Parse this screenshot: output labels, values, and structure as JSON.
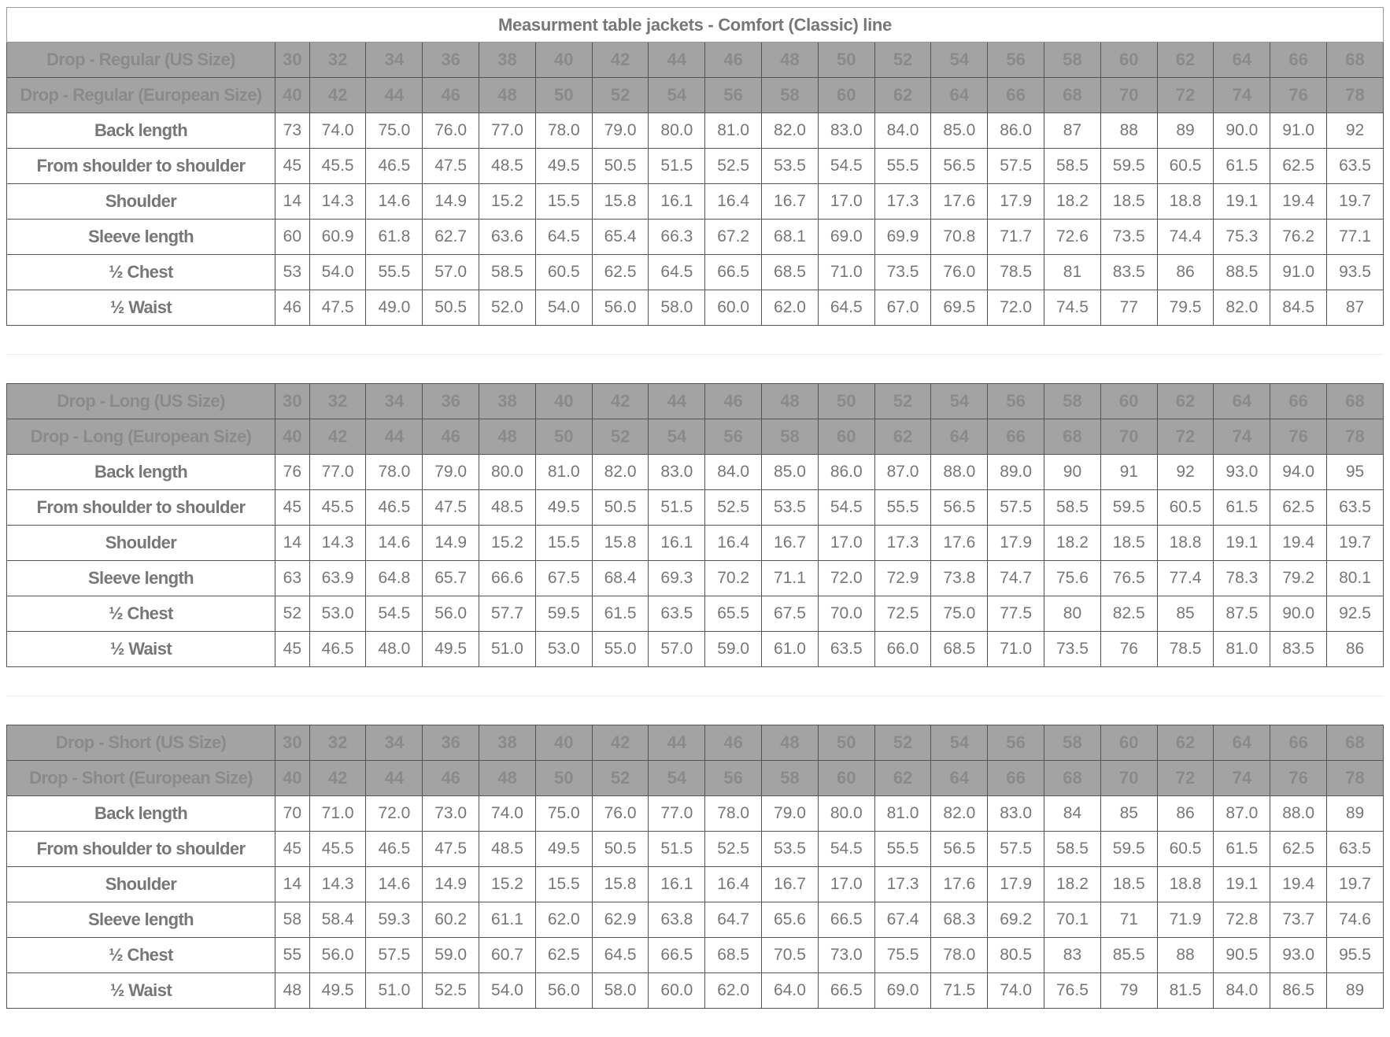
{
  "title": "Measurment table jackets - Comfort (Classic) line",
  "colors": {
    "header_bg": "#a3a3a3",
    "header_text": "#8a8a8a",
    "body_text": "#777777"
  },
  "sections": [
    {
      "us_label": "Drop - Regular (US Size)",
      "eu_label": "Drop - Regular (European Size)",
      "us_sizes": [
        "30",
        "32",
        "34",
        "36",
        "38",
        "40",
        "42",
        "44",
        "46",
        "48",
        "50",
        "52",
        "54",
        "56",
        "58",
        "60",
        "62",
        "64",
        "66",
        "68"
      ],
      "eu_sizes": [
        "40",
        "42",
        "44",
        "46",
        "48",
        "50",
        "52",
        "54",
        "56",
        "58",
        "60",
        "62",
        "64",
        "66",
        "68",
        "70",
        "72",
        "74",
        "76",
        "78"
      ],
      "rows": [
        {
          "label": "Back length",
          "values": [
            "73",
            "74.0",
            "75.0",
            "76.0",
            "77.0",
            "78.0",
            "79.0",
            "80.0",
            "81.0",
            "82.0",
            "83.0",
            "84.0",
            "85.0",
            "86.0",
            "87",
            "88",
            "89",
            "90.0",
            "91.0",
            "92"
          ]
        },
        {
          "label": "From shoulder to shoulder",
          "values": [
            "45",
            "45.5",
            "46.5",
            "47.5",
            "48.5",
            "49.5",
            "50.5",
            "51.5",
            "52.5",
            "53.5",
            "54.5",
            "55.5",
            "56.5",
            "57.5",
            "58.5",
            "59.5",
            "60.5",
            "61.5",
            "62.5",
            "63.5"
          ]
        },
        {
          "label": "Shoulder",
          "values": [
            "14",
            "14.3",
            "14.6",
            "14.9",
            "15.2",
            "15.5",
            "15.8",
            "16.1",
            "16.4",
            "16.7",
            "17.0",
            "17.3",
            "17.6",
            "17.9",
            "18.2",
            "18.5",
            "18.8",
            "19.1",
            "19.4",
            "19.7"
          ]
        },
        {
          "label": "Sleeve length",
          "values": [
            "60",
            "60.9",
            "61.8",
            "62.7",
            "63.6",
            "64.5",
            "65.4",
            "66.3",
            "67.2",
            "68.1",
            "69.0",
            "69.9",
            "70.8",
            "71.7",
            "72.6",
            "73.5",
            "74.4",
            "75.3",
            "76.2",
            "77.1"
          ]
        },
        {
          "label": "½ Chest",
          "values": [
            "53",
            "54.0",
            "55.5",
            "57.0",
            "58.5",
            "60.5",
            "62.5",
            "64.5",
            "66.5",
            "68.5",
            "71.0",
            "73.5",
            "76.0",
            "78.5",
            "81",
            "83.5",
            "86",
            "88.5",
            "91.0",
            "93.5"
          ]
        },
        {
          "label": "½ Waist",
          "values": [
            "46",
            "47.5",
            "49.0",
            "50.5",
            "52.0",
            "54.0",
            "56.0",
            "58.0",
            "60.0",
            "62.0",
            "64.5",
            "67.0",
            "69.5",
            "72.0",
            "74.5",
            "77",
            "79.5",
            "82.0",
            "84.5",
            "87"
          ]
        }
      ]
    },
    {
      "us_label": "Drop - Long (US Size)",
      "eu_label": "Drop - Long (European Size)",
      "us_sizes": [
        "30",
        "32",
        "34",
        "36",
        "38",
        "40",
        "42",
        "44",
        "46",
        "48",
        "50",
        "52",
        "54",
        "56",
        "58",
        "60",
        "62",
        "64",
        "66",
        "68"
      ],
      "eu_sizes": [
        "40",
        "42",
        "44",
        "46",
        "48",
        "50",
        "52",
        "54",
        "56",
        "58",
        "60",
        "62",
        "64",
        "66",
        "68",
        "70",
        "72",
        "74",
        "76",
        "78"
      ],
      "rows": [
        {
          "label": "Back length",
          "values": [
            "76",
            "77.0",
            "78.0",
            "79.0",
            "80.0",
            "81.0",
            "82.0",
            "83.0",
            "84.0",
            "85.0",
            "86.0",
            "87.0",
            "88.0",
            "89.0",
            "90",
            "91",
            "92",
            "93.0",
            "94.0",
            "95"
          ]
        },
        {
          "label": "From shoulder to shoulder",
          "values": [
            "45",
            "45.5",
            "46.5",
            "47.5",
            "48.5",
            "49.5",
            "50.5",
            "51.5",
            "52.5",
            "53.5",
            "54.5",
            "55.5",
            "56.5",
            "57.5",
            "58.5",
            "59.5",
            "60.5",
            "61.5",
            "62.5",
            "63.5"
          ]
        },
        {
          "label": "Shoulder",
          "values": [
            "14",
            "14.3",
            "14.6",
            "14.9",
            "15.2",
            "15.5",
            "15.8",
            "16.1",
            "16.4",
            "16.7",
            "17.0",
            "17.3",
            "17.6",
            "17.9",
            "18.2",
            "18.5",
            "18.8",
            "19.1",
            "19.4",
            "19.7"
          ]
        },
        {
          "label": "Sleeve length",
          "values": [
            "63",
            "63.9",
            "64.8",
            "65.7",
            "66.6",
            "67.5",
            "68.4",
            "69.3",
            "70.2",
            "71.1",
            "72.0",
            "72.9",
            "73.8",
            "74.7",
            "75.6",
            "76.5",
            "77.4",
            "78.3",
            "79.2",
            "80.1"
          ]
        },
        {
          "label": "½ Chest",
          "values": [
            "52",
            "53.0",
            "54.5",
            "56.0",
            "57.7",
            "59.5",
            "61.5",
            "63.5",
            "65.5",
            "67.5",
            "70.0",
            "72.5",
            "75.0",
            "77.5",
            "80",
            "82.5",
            "85",
            "87.5",
            "90.0",
            "92.5"
          ]
        },
        {
          "label": "½ Waist",
          "values": [
            "45",
            "46.5",
            "48.0",
            "49.5",
            "51.0",
            "53.0",
            "55.0",
            "57.0",
            "59.0",
            "61.0",
            "63.5",
            "66.0",
            "68.5",
            "71.0",
            "73.5",
            "76",
            "78.5",
            "81.0",
            "83.5",
            "86"
          ]
        }
      ]
    },
    {
      "us_label": "Drop - Short (US Size)",
      "eu_label": "Drop - Short (European Size)",
      "us_sizes": [
        "30",
        "32",
        "34",
        "36",
        "38",
        "40",
        "42",
        "44",
        "46",
        "48",
        "50",
        "52",
        "54",
        "56",
        "58",
        "60",
        "62",
        "64",
        "66",
        "68"
      ],
      "eu_sizes": [
        "40",
        "42",
        "44",
        "46",
        "48",
        "50",
        "52",
        "54",
        "56",
        "58",
        "60",
        "62",
        "64",
        "66",
        "68",
        "70",
        "72",
        "74",
        "76",
        "78"
      ],
      "rows": [
        {
          "label": "Back length",
          "values": [
            "70",
            "71.0",
            "72.0",
            "73.0",
            "74.0",
            "75.0",
            "76.0",
            "77.0",
            "78.0",
            "79.0",
            "80.0",
            "81.0",
            "82.0",
            "83.0",
            "84",
            "85",
            "86",
            "87.0",
            "88.0",
            "89"
          ]
        },
        {
          "label": "From shoulder to shoulder",
          "values": [
            "45",
            "45.5",
            "46.5",
            "47.5",
            "48.5",
            "49.5",
            "50.5",
            "51.5",
            "52.5",
            "53.5",
            "54.5",
            "55.5",
            "56.5",
            "57.5",
            "58.5",
            "59.5",
            "60.5",
            "61.5",
            "62.5",
            "63.5"
          ]
        },
        {
          "label": "Shoulder",
          "values": [
            "14",
            "14.3",
            "14.6",
            "14.9",
            "15.2",
            "15.5",
            "15.8",
            "16.1",
            "16.4",
            "16.7",
            "17.0",
            "17.3",
            "17.6",
            "17.9",
            "18.2",
            "18.5",
            "18.8",
            "19.1",
            "19.4",
            "19.7"
          ]
        },
        {
          "label": "Sleeve length",
          "values": [
            "58",
            "58.4",
            "59.3",
            "60.2",
            "61.1",
            "62.0",
            "62.9",
            "63.8",
            "64.7",
            "65.6",
            "66.5",
            "67.4",
            "68.3",
            "69.2",
            "70.1",
            "71",
            "71.9",
            "72.8",
            "73.7",
            "74.6"
          ]
        },
        {
          "label": "½ Chest",
          "values": [
            "55",
            "56.0",
            "57.5",
            "59.0",
            "60.7",
            "62.5",
            "64.5",
            "66.5",
            "68.5",
            "70.5",
            "73.0",
            "75.5",
            "78.0",
            "80.5",
            "83",
            "85.5",
            "88",
            "90.5",
            "93.0",
            "95.5"
          ]
        },
        {
          "label": "½ Waist",
          "values": [
            "48",
            "49.5",
            "51.0",
            "52.5",
            "54.0",
            "56.0",
            "58.0",
            "60.0",
            "62.0",
            "64.0",
            "66.5",
            "69.0",
            "71.5",
            "74.0",
            "76.5",
            "79",
            "81.5",
            "84.0",
            "86.5",
            "89"
          ]
        }
      ]
    }
  ]
}
